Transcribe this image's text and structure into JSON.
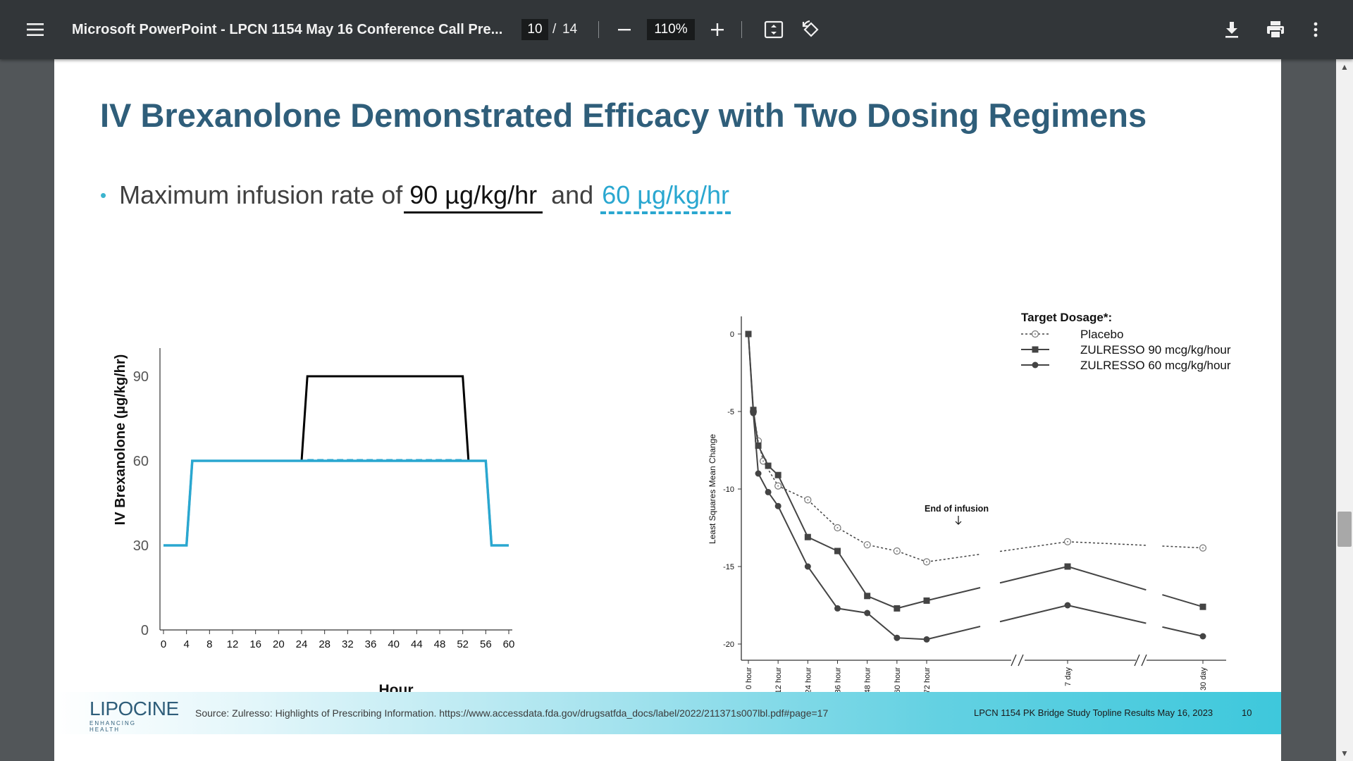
{
  "toolbar": {
    "title": "Microsoft PowerPoint - LPCN 1154 May 16 Conference Call Pre...",
    "current_page": "10",
    "page_separator": "/",
    "total_pages": "14",
    "zoom": "110%"
  },
  "slide": {
    "title": "IV Brexanolone Demonstrated Efficacy with Two Dosing Regimens",
    "bullet_prefix": "Maximum infusion rate of",
    "rate_90": "90 µg/kg/hr",
    "rate_and": "and",
    "rate_60": "60 µg/kg/hr"
  },
  "footer": {
    "logo_text": "LIPOCINE",
    "logo_tagline": "ENHANCING HEALTH",
    "source": "Source: Zulresso: Highlights of Prescribing Information. https://www.accessdata.fda.gov/drugsatfda_docs/label/2022/211371s007lbl.pdf#page=17",
    "right_text": "LPCN 1154 PK Bridge Study Topline Results May 16, 2023",
    "page_number": "10"
  },
  "chart_data": [
    {
      "type": "line",
      "title": "",
      "xlabel": "Hour",
      "ylabel": "IV Brexanolone  (µg/kg/hr)",
      "xlim": [
        0,
        60
      ],
      "ylim": [
        0,
        100
      ],
      "xticks": [
        "0",
        "4",
        "8",
        "12",
        "16",
        "20",
        "24",
        "28",
        "32",
        "36",
        "40",
        "44",
        "48",
        "52",
        "56",
        "60"
      ],
      "yticks": [
        "0",
        "30",
        "60",
        "90"
      ],
      "colors": {
        "regimen_90": "#000000",
        "regimen_60": "#2aa7d0"
      },
      "series": [
        {
          "x": [
            0,
            4,
            5,
            24,
            25,
            52,
            53,
            56,
            57,
            60
          ],
          "values": [
            30,
            30,
            60,
            60,
            90,
            90,
            60,
            60,
            30,
            30
          ]
        },
        {
          "x": [
            0,
            4,
            5,
            56,
            57,
            60
          ],
          "values": [
            30,
            30,
            60,
            60,
            30,
            30
          ]
        }
      ]
    },
    {
      "type": "line",
      "title": "",
      "ylabel": "Least Squares Mean Change",
      "ylim": [
        -20,
        0
      ],
      "yticks": [
        "0",
        "-5",
        "-10",
        "-15",
        "-20"
      ],
      "categories": [
        "0 hour",
        "12 hour",
        "24 hour",
        "36 hour",
        "48 hour",
        "60 hour",
        "72 hour",
        "7 day",
        "30 day"
      ],
      "legend_title": "Target Dosage*:",
      "annotation": "End of infusion",
      "series": [
        {
          "name": "Placebo",
          "x": [
            0,
            2,
            4,
            6,
            12,
            24,
            36,
            48,
            60,
            72
          ],
          "values": [
            0,
            -5,
            -6.9,
            -8.2,
            -9.8,
            -10.7,
            -12.5,
            -13.6,
            -14.0,
            -14.7
          ],
          "extended": [
            {
              "at": "7 day",
              "value": -13.4
            },
            {
              "at": "30 day",
              "value": -13.8
            }
          ]
        },
        {
          "name": "ZULRESSO 90 mcg/kg/hour",
          "x": [
            0,
            2,
            4,
            8,
            12,
            24,
            36,
            48,
            60,
            72
          ],
          "values": [
            0,
            -4.9,
            -7.2,
            -8.5,
            -9.1,
            -13.1,
            -14.0,
            -16.9,
            -17.7,
            -17.2
          ],
          "extended": [
            {
              "at": "7 day",
              "value": -15.0
            },
            {
              "at": "30 day",
              "value": -17.6
            }
          ]
        },
        {
          "name": "ZULRESSO 60 mcg/kg/hour",
          "x": [
            0,
            2,
            4,
            8,
            12,
            24,
            36,
            48,
            60,
            72
          ],
          "values": [
            0,
            -5.1,
            -9.0,
            -10.2,
            -11.1,
            -15.0,
            -17.7,
            -18.0,
            -19.6,
            -19.7
          ],
          "extended": [
            {
              "at": "7 day",
              "value": -17.5
            },
            {
              "at": "30 day",
              "value": -19.5
            }
          ]
        }
      ]
    }
  ],
  "icons": [
    "menu-icon",
    "minus-icon",
    "plus-icon",
    "fit-page-icon",
    "rotate-icon",
    "download-icon",
    "print-icon",
    "more-vert-icon"
  ]
}
